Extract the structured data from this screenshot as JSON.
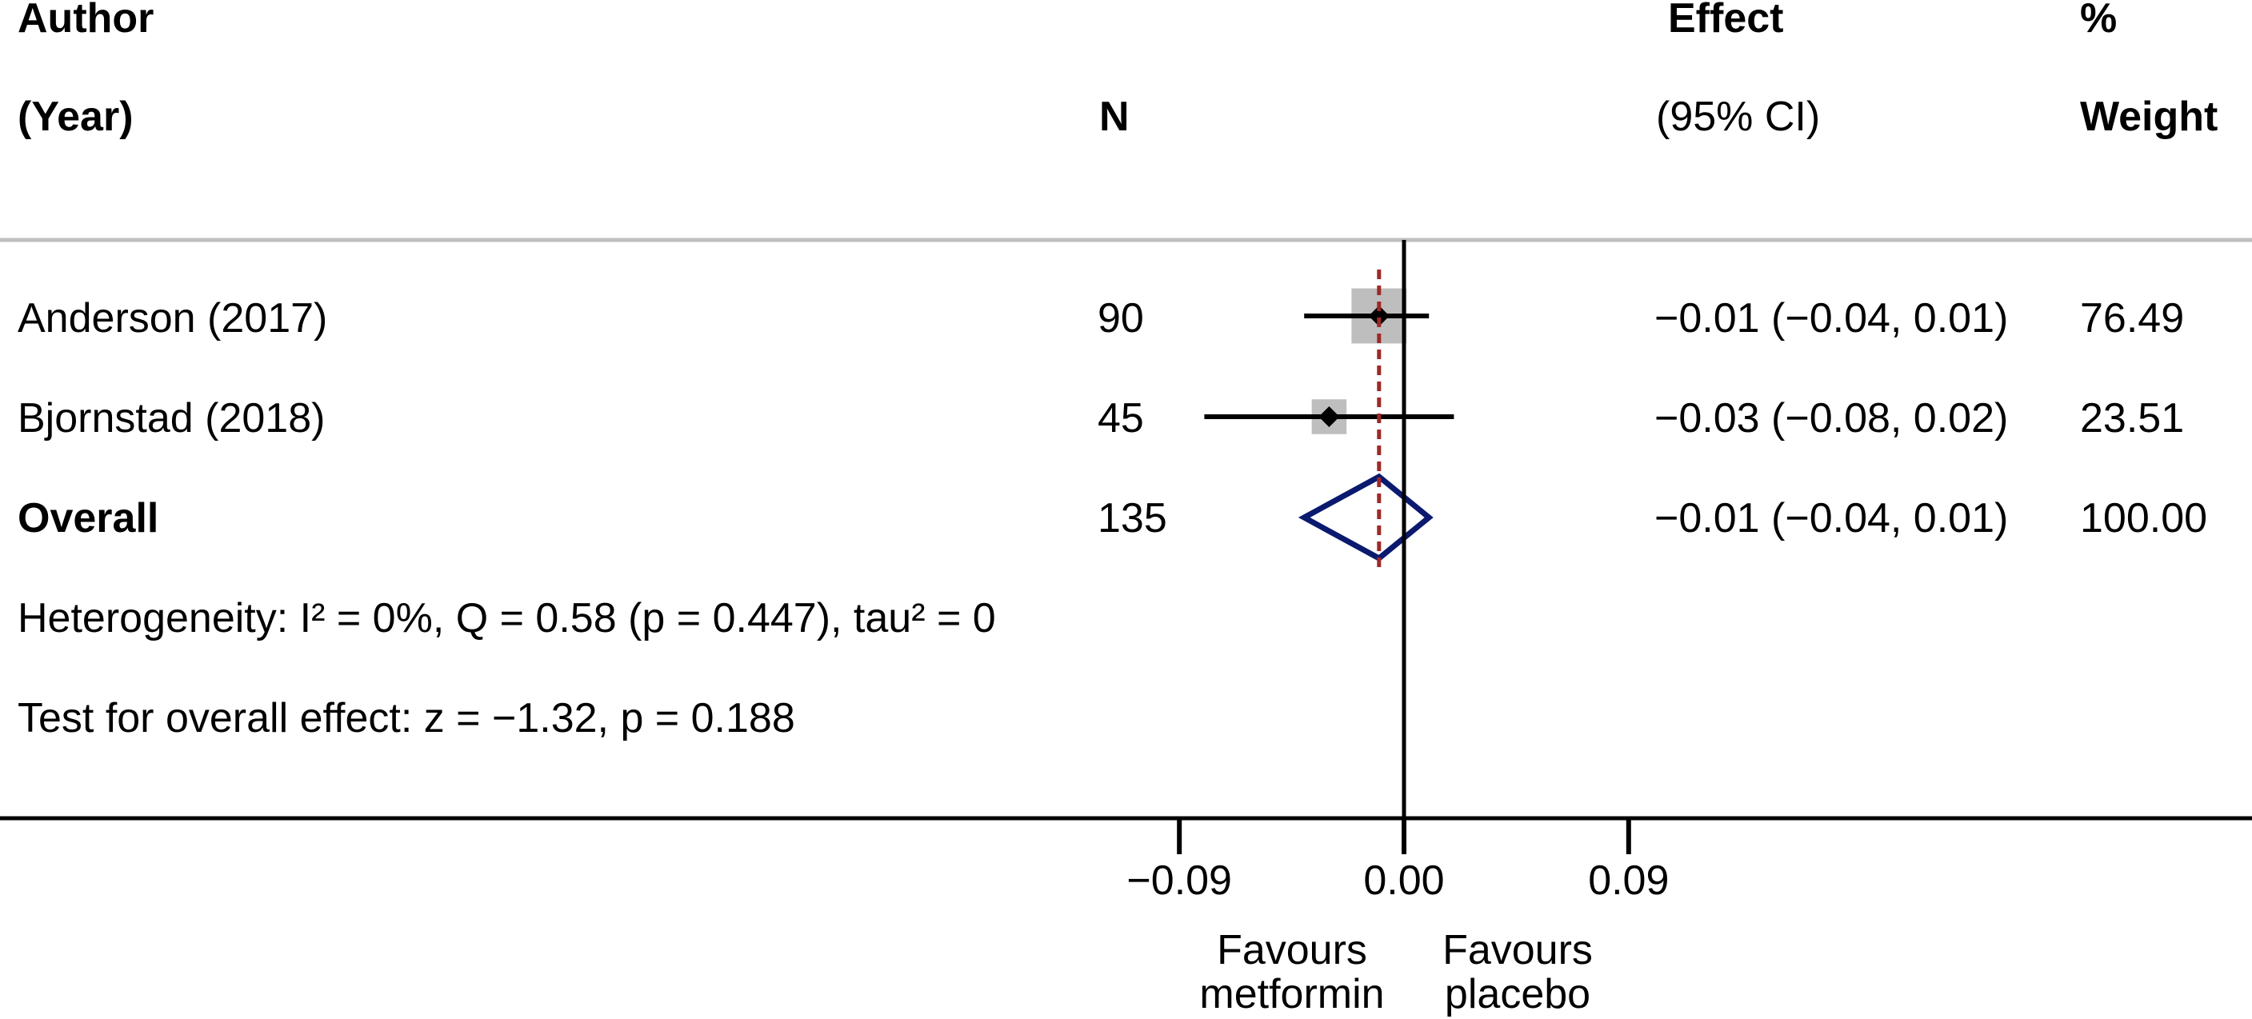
{
  "chart_data": {
    "type": "forest",
    "columns": {
      "author": [
        "Author",
        "(Year)"
      ],
      "n": "N",
      "effect": [
        "Effect",
        "(95% CI)"
      ],
      "weight": [
        "%",
        "Weight"
      ]
    },
    "studies": [
      {
        "label": "Anderson (2017)",
        "n": "90",
        "effect": -0.01,
        "ci_low": -0.04,
        "ci_high": 0.01,
        "effect_text": "−0.01 (−0.04, 0.01)",
        "weight": 76.49,
        "weight_text": "76.49"
      },
      {
        "label": "Bjornstad (2018)",
        "n": "45",
        "effect": -0.03,
        "ci_low": -0.08,
        "ci_high": 0.02,
        "effect_text": "−0.03 (−0.08, 0.02)",
        "weight": 23.51,
        "weight_text": "23.51"
      }
    ],
    "overall": {
      "label": "Overall",
      "n": "135",
      "effect": -0.01,
      "ci_low": -0.04,
      "ci_high": 0.01,
      "effect_text": "−0.01 (−0.04, 0.01)",
      "weight_text": "100.00"
    },
    "heterogeneity": "Heterogeneity: I² = 0%, Q = 0.58 (p = 0.447), tau² = 0",
    "overall_test": "Test for overall effect: z = −1.32, p = 0.188",
    "x_ticks": [
      {
        "value": -0.09,
        "label": "−0.09"
      },
      {
        "value": 0.0,
        "label": "0.00"
      },
      {
        "value": 0.09,
        "label": "0.09"
      }
    ],
    "favours_left": [
      "Favours",
      "metformin"
    ],
    "favours_right": [
      "Favours",
      "placebo"
    ],
    "colors": {
      "ci_line": "#000000",
      "weight_box": "#bebebe",
      "diamond": "#0b1a6e",
      "pooled_line": "#a02828",
      "header_rule": "#bfbfbf"
    }
  }
}
